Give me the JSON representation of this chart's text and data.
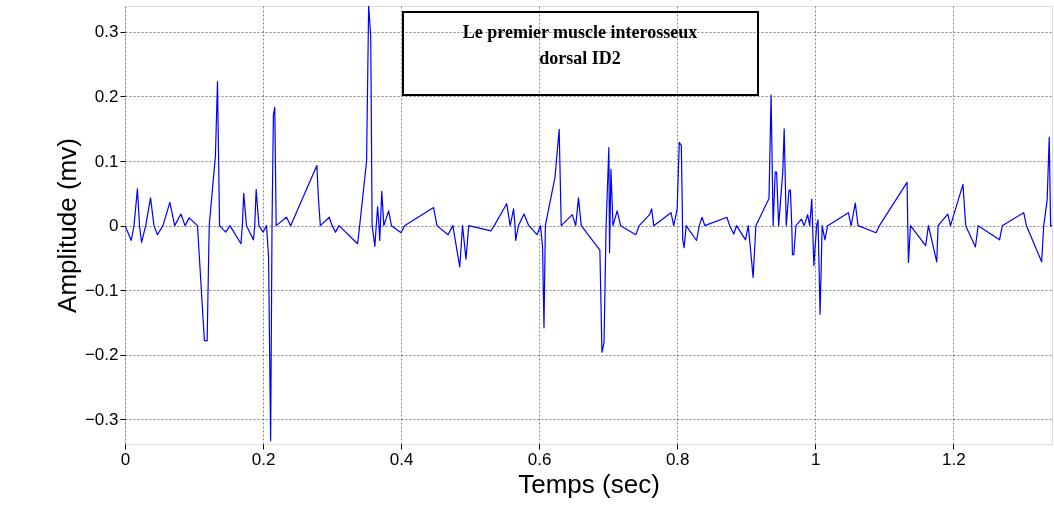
{
  "chart_data": {
    "type": "line",
    "xlabel": "Temps (sec)",
    "ylabel": "Amplitude (mv)",
    "annotations": [
      "Le premier muscle interosseux\ndorsal ID2"
    ],
    "xlim": [
      0,
      1.343
    ],
    "xticks": [
      0,
      0.2,
      0.4,
      0.6,
      0.8,
      1,
      1.2
    ],
    "ylim": [
      -0.338,
      0.34
    ],
    "yticks": [
      -0.3,
      -0.2,
      -0.1,
      0,
      0.1,
      0.2,
      0.3
    ],
    "grid": true,
    "marker": "none",
    "line_style": "solid",
    "series": [
      {
        "color": "#0000ff",
        "x": [
          0,
          0.009,
          0.013,
          0.018,
          0.021,
          0.024,
          0.03,
          0.037,
          0.042,
          0.047,
          0.055,
          0.065,
          0.072,
          0.081,
          0.087,
          0.093,
          0.105,
          0.115,
          0.119,
          0.122,
          0.131,
          0.134,
          0.137,
          0.146,
          0.152,
          0.168,
          0.17,
          0.172,
          0.176,
          0.186,
          0.188,
          0.19,
          0.194,
          0.2,
          0.205,
          0.208,
          0.211,
          0.213,
          0.215,
          0.217,
          0.219,
          0.234,
          0.24,
          0.278,
          0.28,
          0.283,
          0.296,
          0.3,
          0.305,
          0.31,
          0.337,
          0.34,
          0.35,
          0.353,
          0.356,
          0.358,
          0.362,
          0.364,
          0.366,
          0.368,
          0.369,
          0.37,
          0.372,
          0.375,
          0.382,
          0.386,
          0.4,
          0.405,
          0.447,
          0.452,
          0.468,
          0.475,
          0.485,
          0.489,
          0.494,
          0.498,
          0.53,
          0.535,
          0.553,
          0.558,
          0.563,
          0.565,
          0.566,
          0.57,
          0.578,
          0.585,
          0.597,
          0.602,
          0.605,
          0.607,
          0.609,
          0.623,
          0.629,
          0.632,
          0.648,
          0.653,
          0.657,
          0.661,
          0.688,
          0.691,
          0.694,
          0.697,
          0.701,
          0.702,
          0.704,
          0.707,
          0.713,
          0.718,
          0.74,
          0.745,
          0.76,
          0.763,
          0.766,
          0.791,
          0.795,
          0.8,
          0.803,
          0.806,
          0.808,
          0.81,
          0.813,
          0.828,
          0.832,
          0.836,
          0.84,
          0.872,
          0.876,
          0.882,
          0.886,
          0.899,
          0.903,
          0.91,
          0.914,
          0.933,
          0.936,
          0.939,
          0.942,
          0.944,
          0.947,
          0.953,
          0.955,
          0.958,
          0.962,
          0.964,
          0.966,
          0.967,
          0.969,
          0.972,
          0.98,
          0.984,
          0.989,
          0.992,
          0.995,
          0.998,
          1.002,
          1.004,
          1.007,
          1.01,
          1.014,
          1.018,
          1.048,
          1.052,
          1.058,
          1.062,
          1.088,
          1.093,
          1.133,
          1.135,
          1.138,
          1.16,
          1.164,
          1.176,
          1.178,
          1.192,
          1.196,
          1.214,
          1.218,
          1.232,
          1.236,
          1.267,
          1.271,
          1.302,
          1.306,
          1.328,
          1.331,
          1.336,
          1.339,
          1.341,
          1.343
        ],
        "values": [
          0,
          -0.023,
          0,
          0.057,
          0,
          -0.026,
          0,
          0.043,
          0,
          -0.014,
          0,
          0.036,
          0,
          0.018,
          0,
          0.012,
          0,
          -0.178,
          -0.178,
          0,
          0.108,
          0.223,
          0,
          -0.01,
          0,
          -0.028,
          0,
          0.05,
          0,
          -0.022,
          0,
          0.056,
          0,
          -0.01,
          0,
          -0.048,
          -0.333,
          0,
          0.171,
          0.183,
          0,
          0.013,
          0,
          0.093,
          0.046,
          0,
          0.013,
          0,
          -0.01,
          0,
          -0.028,
          0,
          0.1,
          0.34,
          0.294,
          0,
          -0.032,
          0,
          0.029,
          0,
          -0.023,
          0,
          0.053,
          0,
          0.023,
          0,
          -0.011,
          0,
          0.028,
          0,
          -0.014,
          0,
          -0.064,
          0,
          -0.052,
          0,
          -0.008,
          0,
          0.034,
          0,
          0.026,
          0,
          -0.023,
          0,
          0.018,
          0,
          -0.014,
          0,
          -0.034,
          -0.158,
          0,
          0.075,
          0.149,
          0,
          0.017,
          0,
          0.043,
          0,
          -0.038,
          -0.196,
          -0.181,
          0,
          0.121,
          -0.042,
          0.087,
          0,
          0.023,
          0,
          -0.014,
          0,
          0.017,
          0.026,
          0,
          0.02,
          0,
          0.026,
          0.129,
          0.124,
          -0.022,
          -0.034,
          0,
          -0.023,
          0,
          0.013,
          0,
          0.013,
          0,
          -0.013,
          0,
          -0.022,
          0,
          -0.08,
          0,
          0.042,
          0.202,
          0,
          0.083,
          0.083,
          0,
          0.084,
          0.15,
          0,
          0.055,
          0.055,
          0,
          -0.045,
          -0.045,
          0,
          0.01,
          0,
          0.017,
          0,
          0.041,
          -0.062,
          0,
          0.009,
          -0.137,
          0,
          -0.022,
          0,
          0.02,
          0,
          0.035,
          0,
          -0.011,
          0,
          0.067,
          -0.057,
          0,
          -0.031,
          0,
          -0.056,
          0,
          0.018,
          0,
          0.064,
          0,
          -0.033,
          0,
          -0.022,
          0,
          0.02,
          0,
          -0.056,
          0,
          0.04,
          0.137,
          0,
          0
        ]
      }
    ]
  }
}
